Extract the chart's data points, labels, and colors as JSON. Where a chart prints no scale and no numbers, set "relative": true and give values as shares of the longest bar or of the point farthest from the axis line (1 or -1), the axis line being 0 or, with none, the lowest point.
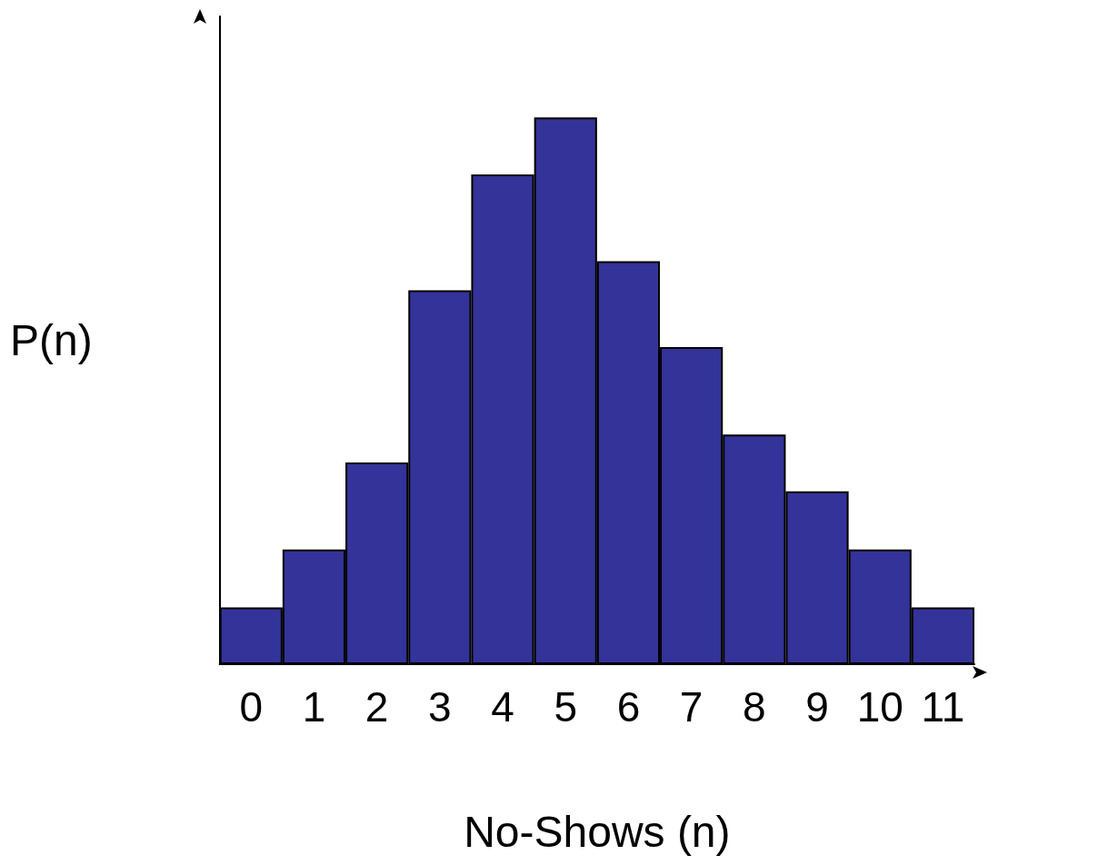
{
  "chart_data": {
    "type": "bar",
    "relative": true,
    "xlabel": "No-Shows (n)",
    "ylabel": "P(n)",
    "categories": [
      "0",
      "1",
      "2",
      "3",
      "4",
      "5",
      "6",
      "7",
      "8",
      "9",
      "10",
      "11"
    ],
    "values": [
      0.104,
      0.21,
      0.369,
      0.684,
      0.896,
      1,
      0.737,
      0.58,
      0.42,
      0.316,
      0.21,
      0.104
    ],
    "color": "#333399",
    "grid": false
  }
}
